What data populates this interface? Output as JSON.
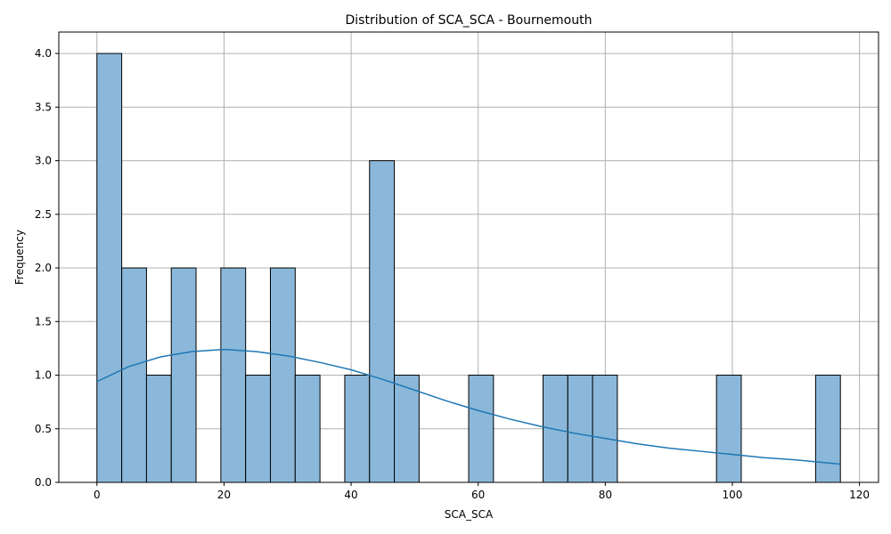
{
  "chart_data": {
    "type": "bar",
    "title": "Distribution of SCA_SCA - Bournemouth",
    "xlabel": "SCA_SCA",
    "ylabel": "Frequency",
    "xlim": [
      -6.0,
      123.0
    ],
    "ylim": [
      0,
      4.2
    ],
    "x_ticks": [
      0,
      20,
      40,
      60,
      80,
      100,
      120
    ],
    "y_ticks": [
      0.0,
      0.5,
      1.0,
      1.5,
      2.0,
      2.5,
      3.0,
      3.5,
      4.0
    ],
    "x_tick_labels": [
      "0",
      "20",
      "40",
      "60",
      "80",
      "100",
      "120"
    ],
    "y_tick_labels": [
      "0.0",
      "0.5",
      "1.0",
      "1.5",
      "2.0",
      "2.5",
      "3.0",
      "3.5",
      "4.0"
    ],
    "grid": true,
    "bin_edges": [
      0,
      3.9,
      7.8,
      11.7,
      15.6,
      19.5,
      23.4,
      27.3,
      31.2,
      35.1,
      39.0,
      42.9,
      46.8,
      50.7,
      54.6,
      58.5,
      62.4,
      66.3,
      70.2,
      74.1,
      78.0,
      81.9,
      85.8,
      89.7,
      93.6,
      97.5,
      101.4,
      105.3,
      109.2,
      113.1,
      117.0
    ],
    "counts": [
      4,
      2,
      1,
      2,
      0,
      2,
      1,
      2,
      1,
      0,
      1,
      3,
      1,
      0,
      0,
      1,
      0,
      0,
      1,
      1,
      1,
      0,
      0,
      0,
      0,
      1,
      0,
      0,
      0,
      1
    ],
    "kde": {
      "x": [
        0,
        5,
        10,
        15,
        20,
        25,
        30,
        35,
        40,
        45,
        50,
        55,
        60,
        65,
        70,
        75,
        80,
        85,
        90,
        95,
        100,
        105,
        110,
        117
      ],
      "y": [
        0.94,
        1.08,
        1.17,
        1.22,
        1.24,
        1.22,
        1.18,
        1.12,
        1.05,
        0.96,
        0.86,
        0.76,
        0.67,
        0.59,
        0.52,
        0.46,
        0.41,
        0.36,
        0.32,
        0.29,
        0.26,
        0.23,
        0.21,
        0.17
      ]
    },
    "colors": {
      "bar_fill": "#8bb8da",
      "bar_edge": "#000000",
      "kde_line": "#1f77b4",
      "grid": "#b0b0b0"
    }
  }
}
